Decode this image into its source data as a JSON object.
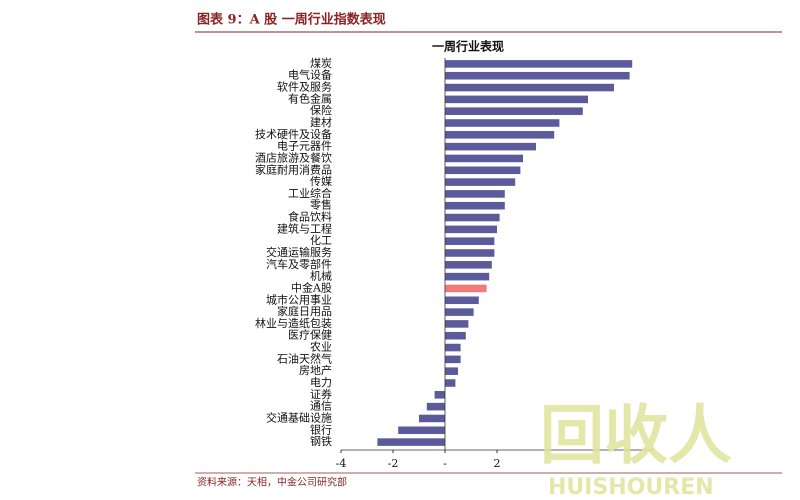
{
  "header": {
    "title": "图表 9：A 股 一周行业指数表现"
  },
  "chart_data": {
    "type": "barh",
    "title": "一周行业表现",
    "categories": [
      "煤炭",
      "电气设备",
      "软件及服务",
      "有色金属",
      "保险",
      "建材",
      "技术硬件及设备",
      "电子元器件",
      "酒店旅游及餐饮",
      "家庭耐用消费品",
      "传媒",
      "工业综合",
      "零售",
      "食品饮料",
      "建筑与工程",
      "化工",
      "交通运输服务",
      "汽车及零部件",
      "机械",
      "中金A股",
      "城市公用事业",
      "家庭日用品",
      "林业与造纸包装",
      "医疗保健",
      "农业",
      "石油天然气",
      "房地产",
      "电力",
      "证券",
      "通信",
      "交通基础设施",
      "银行",
      "钢铁"
    ],
    "values": [
      7.2,
      7.1,
      6.5,
      5.5,
      5.3,
      4.4,
      4.2,
      3.5,
      3.0,
      2.9,
      2.7,
      2.3,
      2.3,
      2.1,
      2.0,
      1.9,
      1.9,
      1.8,
      1.7,
      1.6,
      1.3,
      1.1,
      0.9,
      0.8,
      0.6,
      0.6,
      0.5,
      0.4,
      -0.4,
      -0.7,
      -1.0,
      -1.8,
      -2.6
    ],
    "colors": [
      "#5b5b9b",
      "#5b5b9b",
      "#5b5b9b",
      "#5b5b9b",
      "#5b5b9b",
      "#5b5b9b",
      "#5b5b9b",
      "#5b5b9b",
      "#5b5b9b",
      "#5b5b9b",
      "#5b5b9b",
      "#5b5b9b",
      "#5b5b9b",
      "#5b5b9b",
      "#5b5b9b",
      "#5b5b9b",
      "#5b5b9b",
      "#5b5b9b",
      "#5b5b9b",
      "#f07a7a",
      "#5b5b9b",
      "#5b5b9b",
      "#5b5b9b",
      "#5b5b9b",
      "#5b5b9b",
      "#5b5b9b",
      "#5b5b9b",
      "#5b5b9b",
      "#5b5b9b",
      "#5b5b9b",
      "#5b5b9b",
      "#5b5b9b",
      "#5b5b9b"
    ],
    "xlim": [
      -4,
      8
    ],
    "xticks": [
      -4,
      -2,
      {
        "value": 0,
        "label": "-"
      },
      2
    ]
  },
  "source": "资料来源：天相，中金公司研究部",
  "watermark": {
    "text": "回收人",
    "subtext": "HUISHOUREN"
  }
}
